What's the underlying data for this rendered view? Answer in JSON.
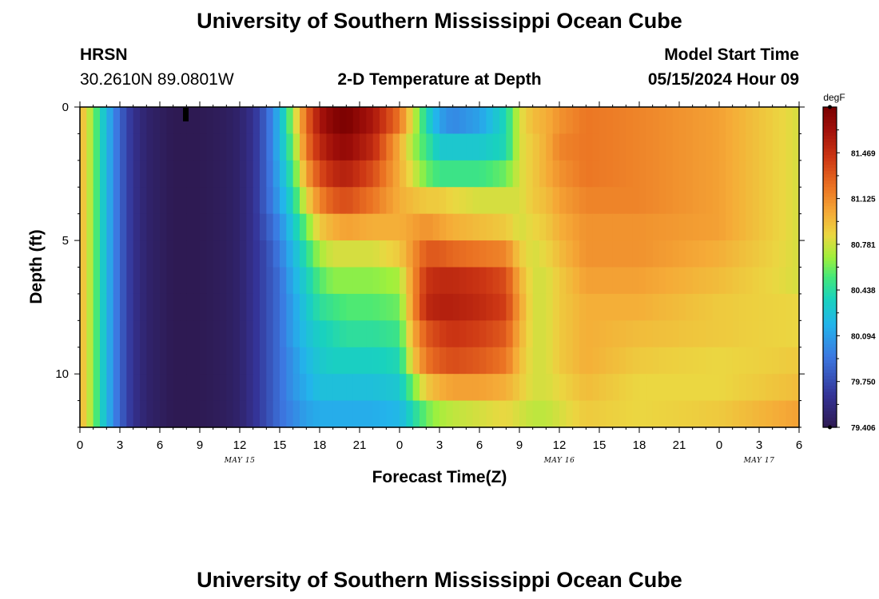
{
  "header": {
    "title": "University of Southern Mississippi Ocean Cube",
    "station": "HRSN",
    "coords": "30.2610N  89.0801W",
    "plot_title": "2-D Temperature at Depth",
    "start_label": "Model Start Time",
    "start_value": "05/15/2024 Hour 09"
  },
  "footer": {
    "title": "University of Southern Mississippi Ocean Cube"
  },
  "chart_data": {
    "type": "heatmap",
    "title": "2-D Temperature at Depth",
    "xlabel": "Forecast Time(Z)",
    "ylabel": "Depth (ft)",
    "x_hours_range": [
      0,
      54
    ],
    "y_depth_range": [
      0,
      12
    ],
    "y_inverted": true,
    "x_tick_labels": [
      "0",
      "3",
      "6",
      "9",
      "12",
      "15",
      "18",
      "21",
      "0",
      "3",
      "6",
      "9",
      "12",
      "15",
      "18",
      "21",
      "0",
      "3",
      "6"
    ],
    "y_tick_labels": [
      "0",
      "5",
      "10"
    ],
    "date_labels": [
      {
        "text": "MAY 15",
        "hour": 12
      },
      {
        "text": "MAY 16",
        "hour": 36
      },
      {
        "text": "MAY 17",
        "hour": 51
      }
    ],
    "colorbar": {
      "unit": "degF",
      "range": [
        79.406,
        81.813
      ],
      "tick_labels": [
        "81.469",
        "81.125",
        "80.781",
        "80.438",
        "80.094",
        "79.750",
        "79.406"
      ],
      "tick_values": [
        81.469,
        81.125,
        80.781,
        80.438,
        80.094,
        79.75,
        79.406
      ]
    },
    "depth_levels_ft": [
      0.5,
      1.5,
      2.5,
      3.5,
      4.5,
      5.5,
      6.5,
      7.5,
      8.5,
      9.5,
      10.5,
      11.5
    ],
    "time_keyframes_hr": [
      0,
      1,
      2,
      3,
      4,
      5,
      6,
      7,
      9,
      11,
      12,
      13,
      14,
      15,
      16,
      17,
      18,
      19,
      20,
      22,
      24,
      25,
      26,
      27,
      28,
      30,
      32,
      33,
      34,
      35,
      36,
      38,
      42,
      48,
      54
    ],
    "temperature_keyframes_degF": [
      [
        81.0,
        80.65,
        80.2,
        79.85,
        79.62,
        79.5,
        79.45,
        79.41,
        79.41,
        79.45,
        79.5,
        79.62,
        79.85,
        80.2,
        80.7,
        81.25,
        81.6,
        81.75,
        81.8,
        81.6,
        81.2,
        80.8,
        80.4,
        80.1,
        80.0,
        80.1,
        80.4,
        80.8,
        80.95,
        81.0,
        81.1,
        81.2,
        81.15,
        81.05,
        80.8
      ],
      [
        81.0,
        80.65,
        80.2,
        79.85,
        79.62,
        79.5,
        79.45,
        79.41,
        79.41,
        79.45,
        79.5,
        79.62,
        79.85,
        80.2,
        80.6,
        81.2,
        81.5,
        81.65,
        81.7,
        81.5,
        81.0,
        80.7,
        80.5,
        80.3,
        80.3,
        80.3,
        80.4,
        80.8,
        80.9,
        81.0,
        81.15,
        81.2,
        81.15,
        81.05,
        80.8
      ],
      [
        81.0,
        80.65,
        80.2,
        79.85,
        79.62,
        79.5,
        79.45,
        79.41,
        79.41,
        79.45,
        79.5,
        79.62,
        79.85,
        80.15,
        80.5,
        81.05,
        81.35,
        81.5,
        81.55,
        81.35,
        81.0,
        80.8,
        80.6,
        80.5,
        80.5,
        80.5,
        80.6,
        80.8,
        80.9,
        81.0,
        81.1,
        81.2,
        81.15,
        81.05,
        80.8
      ],
      [
        81.0,
        80.65,
        80.2,
        79.85,
        79.62,
        79.5,
        79.45,
        79.41,
        79.41,
        79.45,
        79.5,
        79.62,
        79.85,
        80.1,
        80.4,
        80.85,
        81.15,
        81.3,
        81.35,
        81.2,
        81.0,
        80.95,
        80.9,
        80.9,
        80.85,
        80.8,
        80.8,
        80.8,
        80.9,
        80.95,
        81.05,
        81.15,
        81.15,
        81.05,
        80.8
      ],
      [
        81.0,
        80.65,
        80.2,
        79.85,
        79.62,
        79.5,
        79.45,
        79.41,
        79.41,
        79.45,
        79.5,
        79.62,
        79.8,
        80.0,
        80.3,
        80.6,
        80.9,
        81.0,
        81.05,
        81.0,
        81.0,
        81.05,
        81.1,
        81.05,
        81.0,
        80.95,
        80.9,
        80.8,
        80.85,
        80.9,
        81.0,
        81.1,
        81.1,
        81.05,
        80.8
      ],
      [
        81.0,
        80.65,
        80.2,
        79.85,
        79.62,
        79.5,
        79.45,
        79.41,
        79.41,
        79.45,
        79.5,
        79.62,
        79.75,
        79.95,
        80.2,
        80.45,
        80.7,
        80.8,
        80.8,
        80.8,
        80.9,
        81.1,
        81.3,
        81.3,
        81.25,
        81.2,
        81.15,
        80.9,
        80.8,
        80.85,
        80.95,
        81.1,
        81.1,
        81.0,
        80.8
      ],
      [
        81.0,
        80.65,
        80.2,
        79.85,
        79.62,
        79.5,
        79.45,
        79.41,
        79.41,
        79.45,
        79.5,
        79.62,
        79.75,
        79.9,
        80.15,
        80.35,
        80.55,
        80.65,
        80.65,
        80.65,
        80.7,
        81.1,
        81.45,
        81.5,
        81.5,
        81.45,
        81.35,
        81.0,
        80.8,
        80.8,
        80.9,
        81.05,
        81.05,
        80.95,
        80.8
      ],
      [
        81.0,
        80.65,
        80.2,
        79.85,
        79.62,
        79.5,
        79.45,
        79.41,
        79.41,
        79.45,
        79.5,
        79.62,
        79.75,
        79.9,
        80.1,
        80.3,
        80.45,
        80.5,
        80.55,
        80.55,
        80.6,
        81.1,
        81.5,
        81.55,
        81.55,
        81.5,
        81.4,
        81.05,
        80.8,
        80.8,
        80.9,
        81.0,
        81.0,
        80.9,
        80.85
      ],
      [
        81.0,
        80.65,
        80.2,
        79.85,
        79.62,
        79.5,
        79.45,
        79.41,
        79.41,
        79.45,
        79.5,
        79.62,
        79.75,
        79.9,
        80.1,
        80.25,
        80.35,
        80.4,
        80.45,
        80.45,
        80.5,
        81.0,
        81.3,
        81.4,
        81.45,
        81.4,
        81.3,
        81.0,
        80.8,
        80.8,
        80.9,
        81.0,
        80.95,
        80.9,
        80.85
      ],
      [
        81.0,
        80.65,
        80.2,
        79.85,
        79.62,
        79.5,
        79.45,
        79.41,
        79.41,
        79.45,
        79.5,
        79.62,
        79.75,
        79.9,
        80.05,
        80.2,
        80.3,
        80.35,
        80.35,
        80.35,
        80.4,
        80.9,
        81.2,
        81.3,
        81.35,
        81.3,
        81.2,
        80.95,
        80.8,
        80.8,
        80.9,
        81.0,
        80.9,
        80.85,
        80.9
      ],
      [
        81.0,
        80.65,
        80.2,
        79.85,
        79.62,
        79.5,
        79.45,
        79.41,
        79.41,
        79.45,
        79.5,
        79.62,
        79.75,
        79.9,
        80.05,
        80.15,
        80.25,
        80.25,
        80.25,
        80.25,
        80.3,
        80.6,
        80.9,
        81.0,
        81.05,
        81.05,
        81.0,
        80.9,
        80.8,
        80.8,
        80.85,
        80.95,
        80.85,
        80.85,
        80.95
      ],
      [
        81.0,
        80.65,
        80.2,
        79.85,
        79.62,
        79.5,
        79.45,
        79.41,
        79.41,
        79.45,
        79.5,
        79.62,
        79.75,
        79.9,
        80.0,
        80.1,
        80.15,
        80.15,
        80.15,
        80.15,
        80.2,
        80.4,
        80.6,
        80.7,
        80.75,
        80.8,
        80.85,
        80.8,
        80.75,
        80.75,
        80.8,
        80.9,
        80.85,
        80.9,
        81.05
      ]
    ],
    "grid": false,
    "legend": "right-colorbar"
  }
}
